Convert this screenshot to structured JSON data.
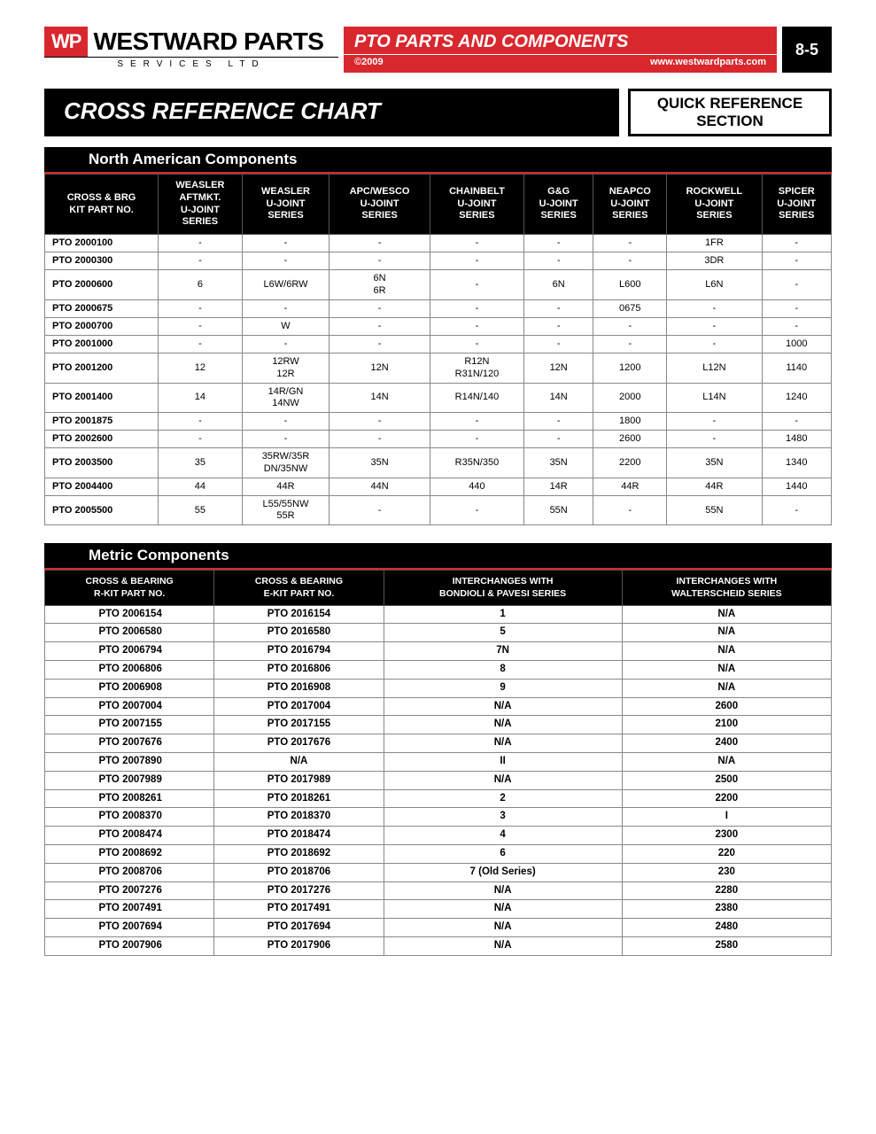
{
  "header": {
    "logo_mark": "WP",
    "logo_text": "WESTWARD PARTS",
    "logo_sub": "SERVICES LTD",
    "title": "PTO PARTS AND COMPONENTS",
    "copyright": "©2009",
    "url": "www.westwardparts.com",
    "pagenum": "8-5"
  },
  "chart_title": "CROSS REFERENCE CHART",
  "quickref": "QUICK REFERENCE SECTION",
  "section1": {
    "heading": "North American Components",
    "columns": [
      "CROSS & BRG\nKIT PART NO.",
      "WEASLER\nAFTMKT.\nU-JOINT\nSERIES",
      "WEASLER\nU-JOINT\nSERIES",
      "APC/WESCO\nU-JOINT\nSERIES",
      "CHAINBELT\nU-JOINT\nSERIES",
      "G&G\nU-JOINT\nSERIES",
      "NEAPCO\nU-JOINT\nSERIES",
      "ROCKWELL\nU-JOINT\nSERIES",
      "SPICER\nU-JOINT\nSERIES"
    ],
    "rows": [
      [
        "PTO 2000100",
        "-",
        "-",
        "-",
        "-",
        "-",
        "-",
        "1FR",
        "-"
      ],
      [
        "PTO 2000300",
        "-",
        "-",
        "-",
        "-",
        "-",
        "-",
        "3DR",
        "-"
      ],
      [
        "PTO 2000600",
        "6",
        "L6W/6RW",
        "6N\n6R",
        "-",
        "6N",
        "L600",
        "L6N",
        "-"
      ],
      [
        "PTO 2000675",
        "-",
        "-",
        "-",
        "-",
        "-",
        "0675",
        "-",
        "-"
      ],
      [
        "PTO 2000700",
        "-",
        "W",
        "-",
        "-",
        "-",
        "-",
        "-",
        "-"
      ],
      [
        "PTO 2001000",
        "-",
        "-",
        "-",
        "-",
        "-",
        "-",
        "-",
        "1000"
      ],
      [
        "PTO 2001200",
        "12",
        "12RW\n12R",
        "12N",
        "R12N\nR31N/120",
        "12N",
        "1200",
        "L12N",
        "1140"
      ],
      [
        "PTO 2001400",
        "14",
        "14R/GN\n14NW",
        "14N",
        "R14N/140",
        "14N",
        "2000",
        "L14N",
        "1240"
      ],
      [
        "PTO 2001875",
        "-",
        "-",
        "-",
        "-",
        "-",
        "1800",
        "-",
        "-"
      ],
      [
        "PTO 2002600",
        "-",
        "-",
        "-",
        "-",
        "-",
        "2600",
        "-",
        "1480"
      ],
      [
        "PTO 2003500",
        "35",
        "35RW/35R\nDN/35NW",
        "35N",
        "R35N/350",
        "35N",
        "2200",
        "35N",
        "1340"
      ],
      [
        "PTO 2004400",
        "44",
        "44R",
        "44N",
        "440",
        "14R",
        "44R",
        "44R",
        "1440"
      ],
      [
        "PTO 2005500",
        "55",
        "L55/55NW\n55R",
        "-",
        "-",
        "55N",
        "-",
        "55N",
        "-"
      ]
    ]
  },
  "section2": {
    "heading": "Metric Components",
    "columns": [
      "CROSS & BEARING\nR-KIT PART NO.",
      "CROSS & BEARING\nE-KIT PART NO.",
      "INTERCHANGES WITH\nBONDIOLI & PAVESI SERIES",
      "INTERCHANGES WITH\nWALTERSCHEID SERIES"
    ],
    "rows": [
      [
        "PTO 2006154",
        "PTO 2016154",
        "1",
        "N/A"
      ],
      [
        "PTO 2006580",
        "PTO 2016580",
        "5",
        "N/A"
      ],
      [
        "PTO 2006794",
        "PTO 2016794",
        "7N",
        "N/A"
      ],
      [
        "PTO 2006806",
        "PTO 2016806",
        "8",
        "N/A"
      ],
      [
        "PTO 2006908",
        "PTO 2016908",
        "9",
        "N/A"
      ],
      [
        "PTO 2007004",
        "PTO 2017004",
        "N/A",
        "2600"
      ],
      [
        "PTO 2007155",
        "PTO 2017155",
        "N/A",
        "2100"
      ],
      [
        "PTO 2007676",
        "PTO 2017676",
        "N/A",
        "2400"
      ],
      [
        "PTO 2007890",
        "N/A",
        "II",
        "N/A"
      ],
      [
        "PTO 2007989",
        "PTO 2017989",
        "N/A",
        "2500"
      ],
      [
        "PTO 2008261",
        "PTO 2018261",
        "2",
        "2200"
      ],
      [
        "PTO 2008370",
        "PTO 2018370",
        "3",
        "I"
      ],
      [
        "PTO 2008474",
        "PTO 2018474",
        "4",
        "2300"
      ],
      [
        "PTO 2008692",
        "PTO 2018692",
        "6",
        "220"
      ],
      [
        "PTO 2008706",
        "PTO 2018706",
        "7 (Old Series)",
        "230"
      ],
      [
        "PTO 2007276",
        "PTO 2017276",
        "N/A",
        "2280"
      ],
      [
        "PTO 2007491",
        "PTO 2017491",
        "N/A",
        "2380"
      ],
      [
        "PTO 2007694",
        "PTO 2017694",
        "N/A",
        "2480"
      ],
      [
        "PTO 2007906",
        "PTO 2017906",
        "N/A",
        "2580"
      ]
    ]
  }
}
